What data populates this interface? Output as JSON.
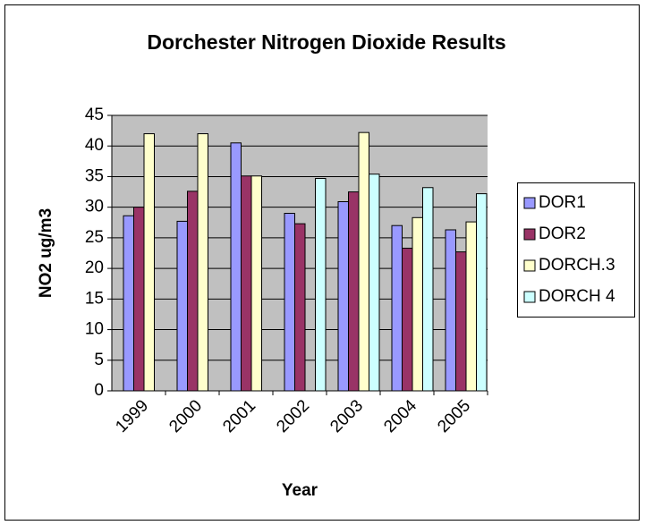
{
  "chart_data": {
    "type": "bar",
    "title": "Dorchester Nitrogen Dioxide Results",
    "x_label": "Year",
    "y_label": "NO2 ug/m3",
    "categories": [
      "1999",
      "2000",
      "2001",
      "2002",
      "2003",
      "2004",
      "2005"
    ],
    "series": [
      {
        "name": "DOR1",
        "color": "#9999ff",
        "values": [
          28.6,
          27.7,
          40.5,
          29,
          30.9,
          27,
          26.3
        ]
      },
      {
        "name": "DOR2",
        "color": "#993366",
        "values": [
          30,
          32.6,
          35.1,
          27.3,
          32.5,
          23.3,
          22.7
        ]
      },
      {
        "name": "DORCH.3",
        "color": "#ffffcc",
        "values": [
          42,
          42,
          35.1,
          null,
          42.2,
          28.3,
          27.6
        ]
      },
      {
        "name": "DORCH 4",
        "color": "#ccffff",
        "values": [
          null,
          null,
          null,
          34.7,
          35.4,
          33.2,
          32.2
        ]
      }
    ],
    "ylim": [
      0,
      45
    ],
    "yticks": [
      0,
      5,
      10,
      15,
      20,
      25,
      30,
      35,
      40,
      45
    ],
    "grid": true,
    "legend": "right"
  }
}
